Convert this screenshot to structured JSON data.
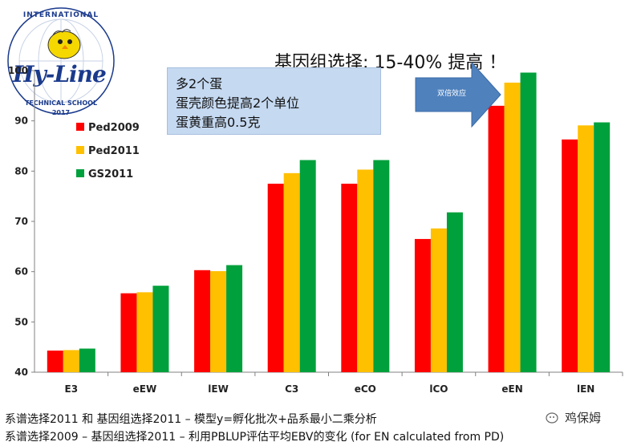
{
  "logo": {
    "top_text": "INTERNATIONAL",
    "brand": "Hy-Line",
    "bottom_text": "TECHNICAL SCHOOL",
    "year": "2017"
  },
  "title": "基因组选择; 15-40% 提高 ！",
  "note_box": {
    "lines": [
      "多2个蛋",
      "蛋壳颜色提高2个单位",
      "蛋黄重高0.5克"
    ]
  },
  "arrow": {
    "label": "双倍效应",
    "color": "#4f81bd"
  },
  "footer": {
    "line1": "系谱选择2011 和 基因组选择2011 – 模型y=孵化批次+品系最小二乘分析",
    "line2": "系谱选择2009 – 基因组选择2011 – 利用PBLUP评估平均EBV的变化 (for EN calculated from PD)"
  },
  "watermark": "鸡保姆",
  "chart_data": {
    "type": "bar",
    "categories": [
      "E3",
      "eEW",
      "lEW",
      "C3",
      "eCO",
      "lCO",
      "eEN",
      "lEN"
    ],
    "series": [
      {
        "name": "Ped2009",
        "color": "#ff0000",
        "values": [
          44.3,
          55.7,
          60.3,
          77.5,
          77.5,
          66.5,
          93.0,
          86.3
        ]
      },
      {
        "name": "Ped2011",
        "color": "#ffc000",
        "values": [
          44.4,
          55.9,
          60.1,
          79.6,
          80.3,
          68.6,
          97.6,
          89.1
        ]
      },
      {
        "name": "GS2011",
        "color": "#00a03c",
        "values": [
          44.7,
          57.2,
          61.3,
          82.2,
          82.2,
          71.8,
          99.6,
          89.7
        ]
      }
    ],
    "yticks": [
      40,
      50,
      60,
      70,
      80,
      90,
      100
    ],
    "ylim": [
      40,
      100
    ],
    "grid": false,
    "legend": "top-left"
  }
}
